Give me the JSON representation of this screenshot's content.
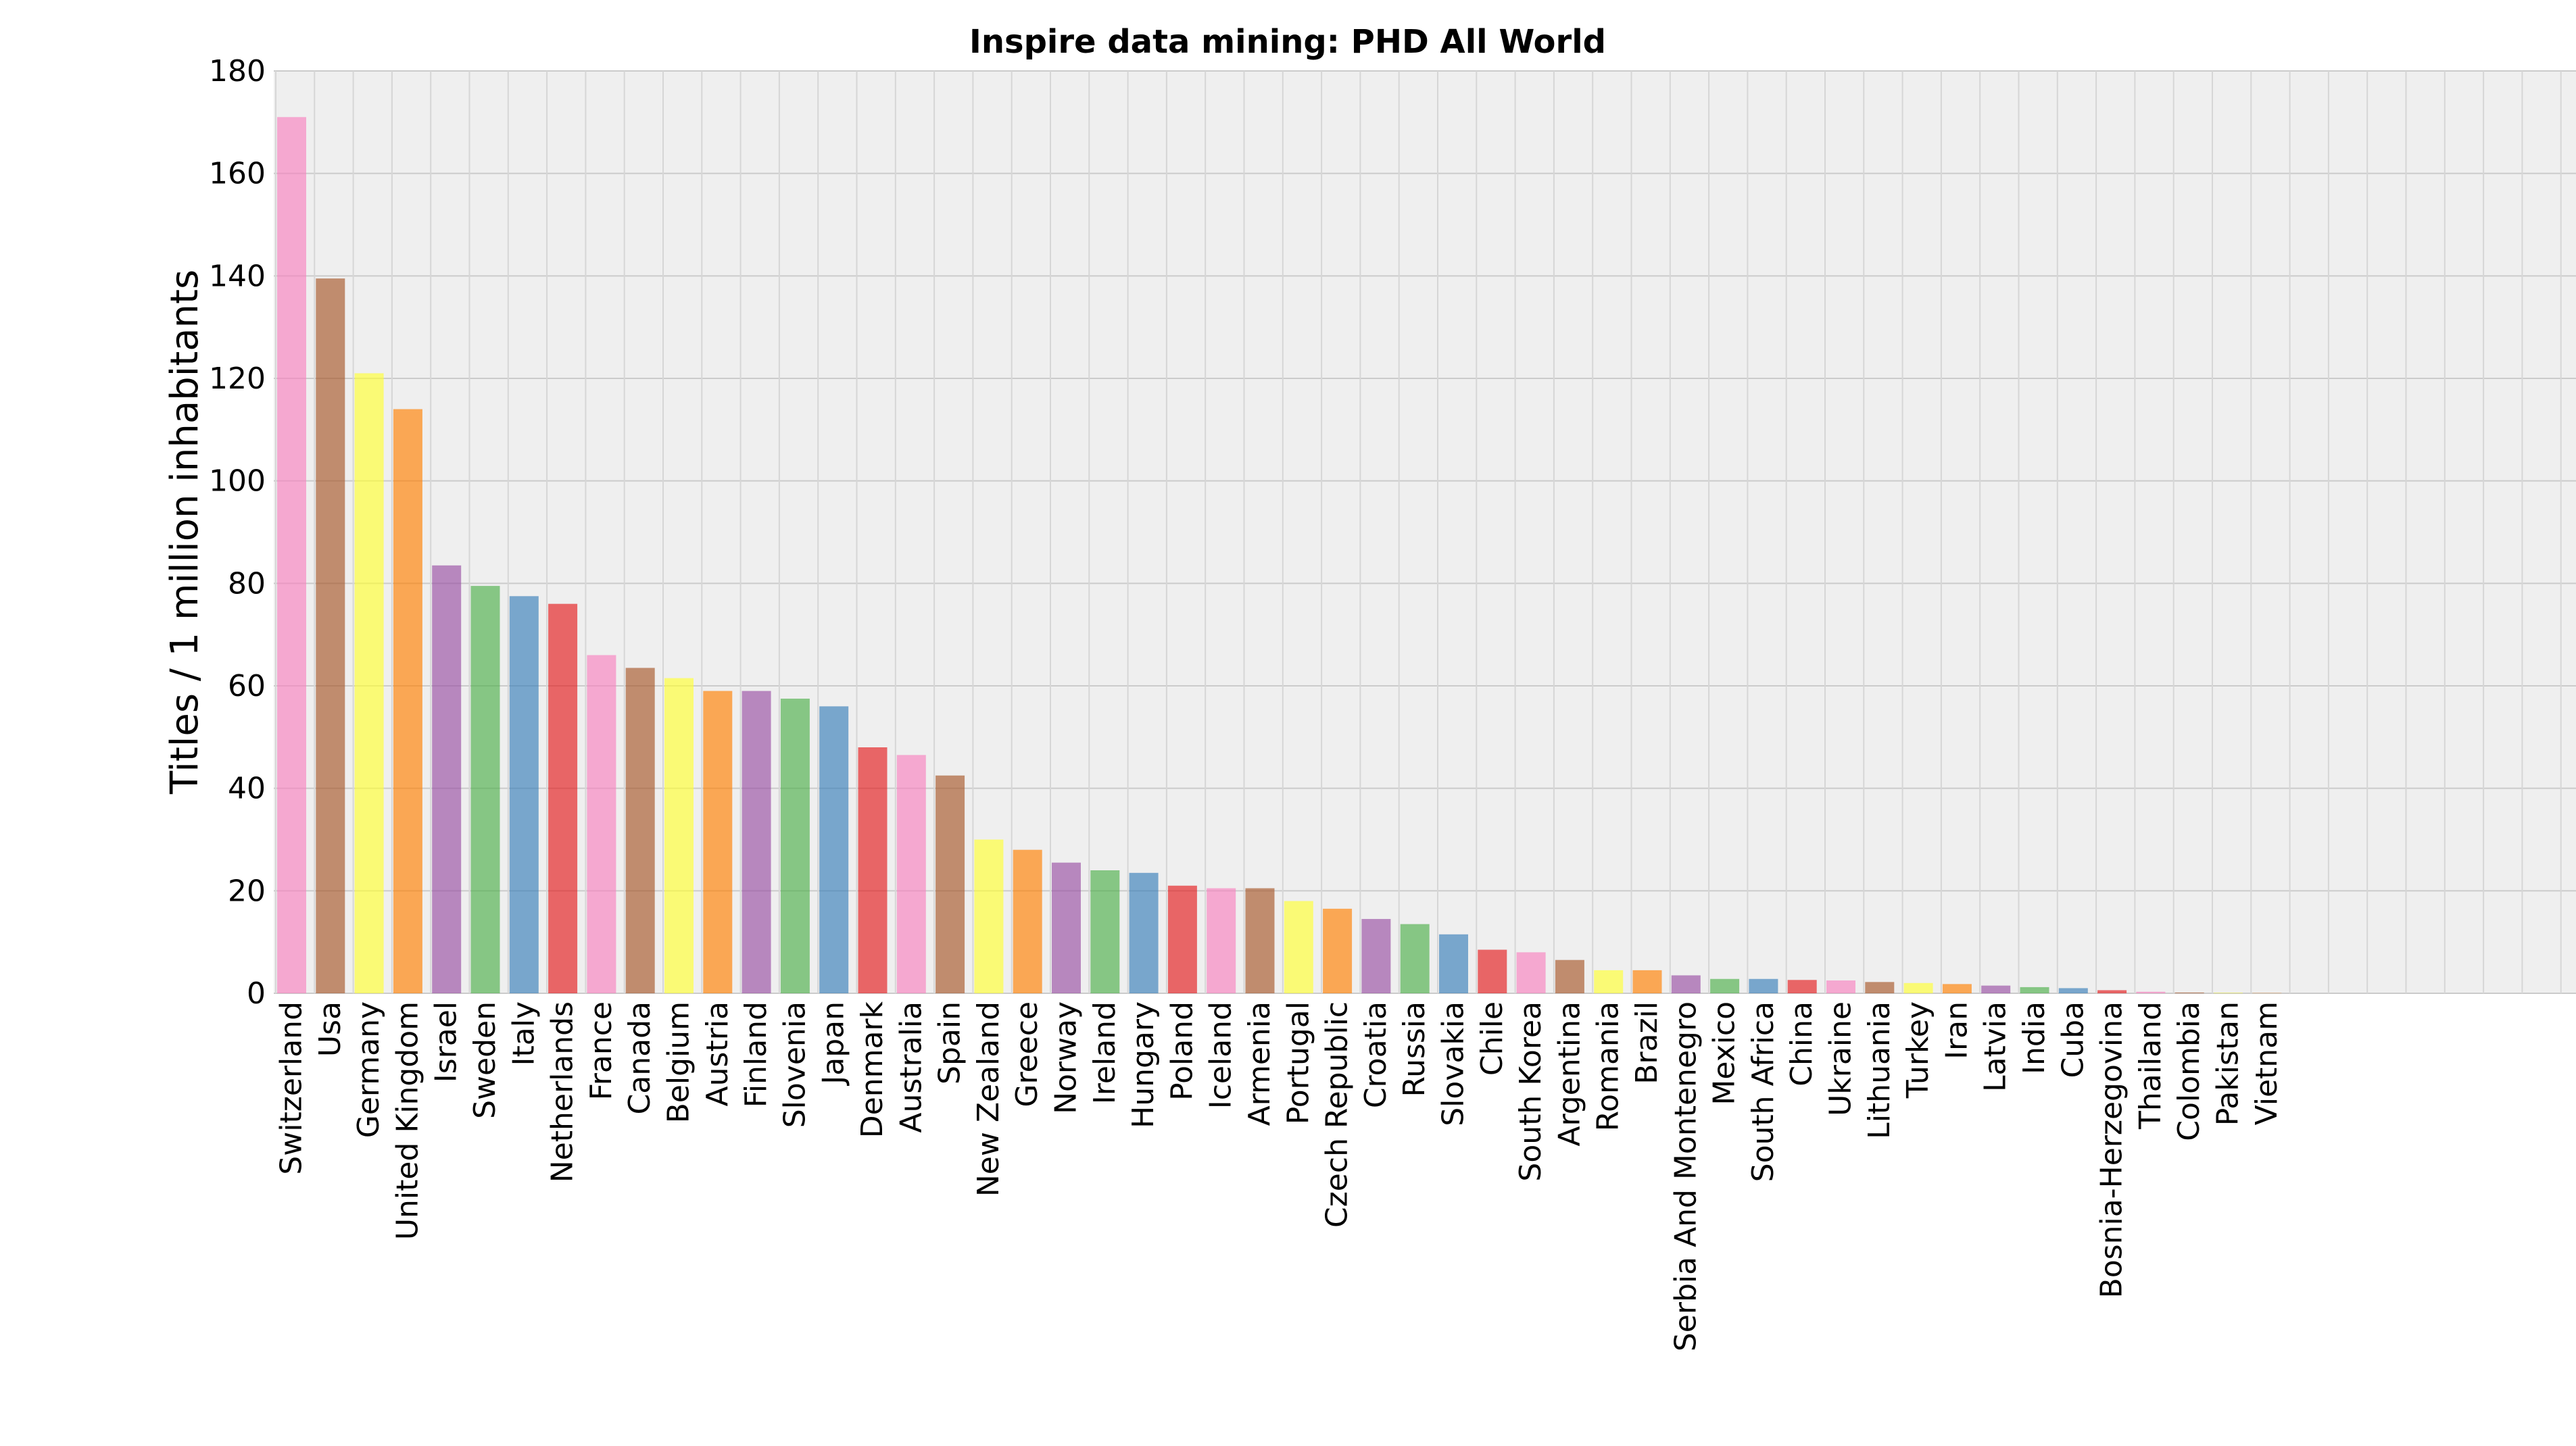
{
  "chart_data": {
    "type": "bar",
    "title": "Inspire data mining: PHD All World",
    "xlabel": "",
    "ylabel": "Titles / 1 million inhabitants",
    "ylim": [
      0,
      180
    ],
    "yticks": [
      0,
      20,
      40,
      60,
      80,
      100,
      120,
      140,
      160,
      180
    ],
    "grid": true,
    "categories": [
      "Switzerland",
      "Usa",
      "Germany",
      "United Kingdom",
      "Israel",
      "Sweden",
      "Italy",
      "Netherlands",
      "France",
      "Canada",
      "Belgium",
      "Austria",
      "Finland",
      "Slovenia",
      "Japan",
      "Denmark",
      "Australia",
      "Spain",
      "New Zealand",
      "Greece",
      "Norway",
      "Ireland",
      "Hungary",
      "Poland",
      "Iceland",
      "Armenia",
      "Portugal",
      "Czech Republic",
      "Croatia",
      "Russia",
      "Slovakia",
      "Chile",
      "South Korea",
      "Argentina",
      "Romania",
      "Brazil",
      "Serbia And Montenegro",
      "Mexico",
      "South Africa",
      "China",
      "Ukraine",
      "Lithuania",
      "Turkey",
      "Iran",
      "Latvia",
      "India",
      "Cuba",
      "Bosnia-Herzegovina",
      "Thailand",
      "Colombia",
      "Pakistan",
      "Vietnam"
    ],
    "values": [
      171,
      139.5,
      121,
      114,
      83.5,
      79.5,
      77.5,
      76,
      66,
      63.5,
      61.5,
      59,
      59,
      57.5,
      56,
      48,
      46.5,
      42.5,
      30,
      28,
      25.5,
      24,
      23.5,
      21,
      20.5,
      20.5,
      18,
      16.5,
      14.5,
      13.5,
      11.5,
      8.5,
      8,
      6.5,
      4.5,
      4.5,
      3.5,
      2.8,
      2.8,
      2.6,
      2.5,
      2.2,
      2,
      1.8,
      1.5,
      1.2,
      1,
      0.6,
      0.3,
      0.15,
      0.1,
      0.05
    ],
    "colors": [
      "#f781bf",
      "#a65628",
      "#ffff33",
      "#ff7f00",
      "#984ea3",
      "#4daf4a",
      "#377eb8",
      "#e41a1c"
    ]
  }
}
